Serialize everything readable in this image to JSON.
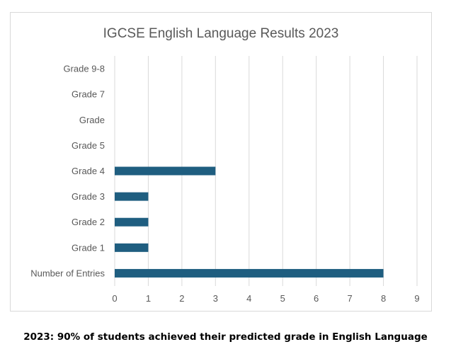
{
  "chart_data": {
    "type": "bar",
    "orientation": "horizontal",
    "title": "IGCSE English Language Results 2023",
    "xlabel": "",
    "ylabel": "",
    "categories": [
      "Number of Entries",
      "Grade 1",
      "Grade 2",
      "Grade 3",
      "Grade 4",
      "Grade 5",
      "Grade",
      "Grade 7",
      "Grade 9-8"
    ],
    "values": [
      8,
      1,
      1,
      1,
      3,
      0,
      0,
      0,
      0
    ],
    "xlim": [
      0,
      9
    ],
    "xticks": [
      "0",
      "1",
      "2",
      "3",
      "4",
      "5",
      "6",
      "7",
      "8",
      "9"
    ],
    "grid": true,
    "legend": "none",
    "bar_color": "#1f5e80"
  },
  "caption": "2023: 90% of students achieved their predicted grade in English Language"
}
